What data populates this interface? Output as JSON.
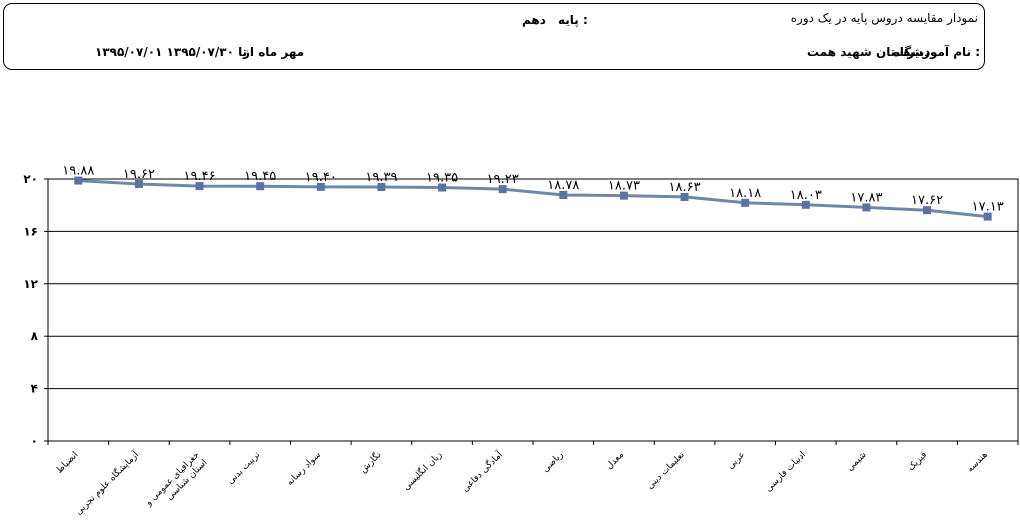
{
  "header": {
    "title": "نمودار مقایسه دروس پایه  در یک دوره",
    "grade_label": "پایه :",
    "grade_value": "دهم",
    "school_label": "نام آموزشگاه :",
    "school_value": "دبیرستان شهید همت",
    "period_label": "مهر ماه  از",
    "period_value": "۱۳۹۵/۰۷/۰۱ تا ۱۳۹۵/۰۷/۳۰"
  },
  "chart_data": {
    "type": "line",
    "title": "",
    "xlabel": "",
    "ylabel": "",
    "ylim": [
      0,
      20
    ],
    "yticks": [
      0,
      4,
      8,
      12,
      16,
      20
    ],
    "ytick_labels": [
      "۰",
      "۴",
      "۸",
      "۱۲",
      "۱۶",
      "۲۰"
    ],
    "grid": "horizontal",
    "legend": "none",
    "line_color": "#6f87ad",
    "marker_color": "#5a73a0",
    "categories": [
      [
        "انضباط"
      ],
      [
        "آزمایشگاه علوم تجربی"
      ],
      [
        "جغرافیای عمومی و",
        "استان شناسی"
      ],
      [
        "تربیت بدنی"
      ],
      [
        "سواد رسانه"
      ],
      [
        "نگارش"
      ],
      [
        "زبان انگلیسی"
      ],
      [
        "آمادگی دفاعی"
      ],
      [
        "ریاضی"
      ],
      [
        "معدل"
      ],
      [
        "تعلیمات دینی"
      ],
      [
        "عربی"
      ],
      [
        "ادبیات فارسی"
      ],
      [
        "شیمی"
      ],
      [
        "فیزیک"
      ],
      [
        "هندسه"
      ]
    ],
    "values": [
      19.88,
      19.62,
      19.46,
      19.45,
      19.4,
      19.39,
      19.35,
      19.23,
      18.78,
      18.73,
      18.63,
      18.18,
      18.03,
      17.83,
      17.62,
      17.13
    ],
    "data_labels": [
      "۱۹.۸۸",
      "۱۹.۶۲",
      "۱۹.۴۶",
      "۱۹.۴۵",
      "۱۹.۴۰",
      "۱۹.۳۹",
      "۱۹.۳۵",
      "۱۹.۲۳",
      "۱۸.۷۸",
      "۱۸.۷۳",
      "۱۸.۶۳",
      "۱۸.۱۸",
      "۱۸.۰۳",
      "۱۷.۸۳",
      "۱۷.۶۲",
      "۱۷.۱۳"
    ]
  }
}
